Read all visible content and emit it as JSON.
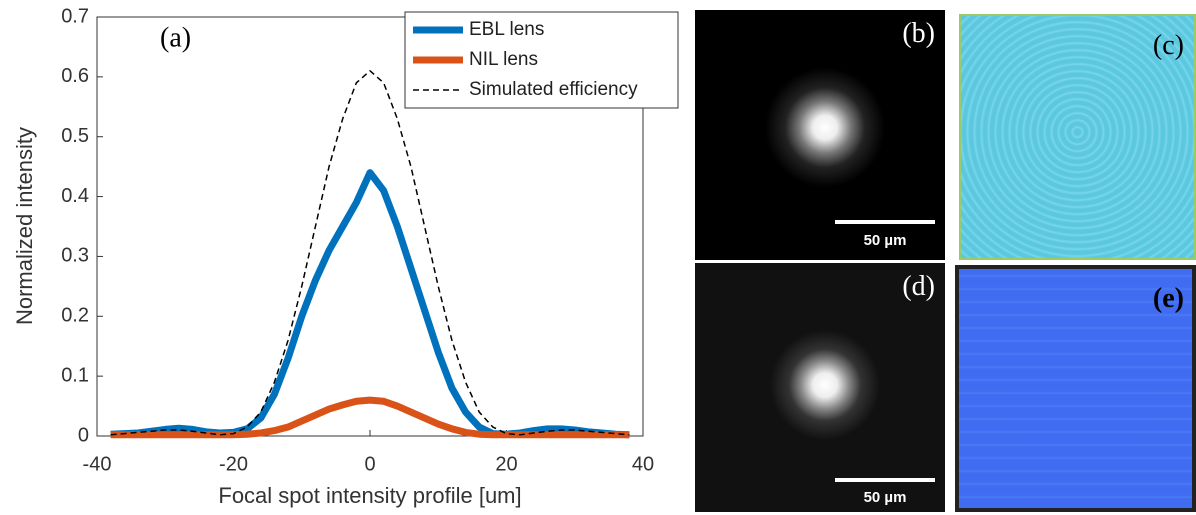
{
  "chart_data": {
    "type": "line",
    "panel_label": "(a)",
    "x_label": "Focal spot intensity profile [um]",
    "y_label": "Normalized intensity",
    "x": [
      -38,
      -36,
      -34,
      -32,
      -30,
      -28,
      -26,
      -24,
      -22,
      -20,
      -18,
      -16,
      -14,
      -12,
      -10,
      -8,
      -6,
      -4,
      -2,
      0,
      2,
      4,
      6,
      8,
      10,
      12,
      14,
      16,
      18,
      20,
      22,
      24,
      26,
      28,
      30,
      32,
      34,
      36,
      38
    ],
    "series": [
      {
        "name": "EBL lens",
        "color": "#0072bd",
        "linestyle": "solid",
        "width": 7,
        "values": [
          0.003,
          0.004,
          0.005,
          0.008,
          0.011,
          0.013,
          0.011,
          0.007,
          0.005,
          0.006,
          0.012,
          0.03,
          0.07,
          0.13,
          0.2,
          0.26,
          0.31,
          0.35,
          0.39,
          0.44,
          0.41,
          0.35,
          0.28,
          0.21,
          0.14,
          0.08,
          0.04,
          0.015,
          0.004,
          0.003,
          0.005,
          0.009,
          0.012,
          0.012,
          0.01,
          0.007,
          0.005,
          0.003,
          0.002
        ]
      },
      {
        "name": "NIL lens",
        "color": "#d95319",
        "linestyle": "solid",
        "width": 7,
        "values": [
          0.002,
          0.002,
          0.002,
          0.002,
          0.002,
          0.002,
          0.002,
          0.002,
          0.002,
          0.002,
          0.003,
          0.005,
          0.009,
          0.015,
          0.025,
          0.035,
          0.045,
          0.052,
          0.058,
          0.06,
          0.058,
          0.05,
          0.04,
          0.03,
          0.02,
          0.012,
          0.006,
          0.003,
          0.002,
          0.002,
          0.002,
          0.002,
          0.002,
          0.002,
          0.002,
          0.002,
          0.002,
          0.002,
          0.002
        ]
      },
      {
        "name": "Simulated efficiency",
        "color": "#000000",
        "linestyle": "dashed",
        "width": 1.5,
        "values": [
          0.002,
          0.004,
          0.006,
          0.008,
          0.01,
          0.01,
          0.008,
          0.005,
          0.002,
          0.004,
          0.015,
          0.04,
          0.09,
          0.16,
          0.25,
          0.35,
          0.45,
          0.53,
          0.59,
          0.61,
          0.59,
          0.53,
          0.45,
          0.35,
          0.25,
          0.16,
          0.09,
          0.04,
          0.015,
          0.004,
          0.002,
          0.005,
          0.008,
          0.01,
          0.01,
          0.008,
          0.006,
          0.004,
          0.002
        ]
      }
    ],
    "xlim": [
      -40,
      40
    ],
    "xticks": [
      -40,
      -20,
      0,
      20,
      40
    ],
    "ylim": [
      0,
      0.7
    ],
    "yticks": [
      0,
      0.1,
      0.2,
      0.3,
      0.4,
      0.5,
      0.6,
      0.7
    ],
    "grid": false,
    "legend": "top-right"
  },
  "panels": [
    {
      "label": "(b)",
      "scale_bar": "50 µm"
    },
    {
      "label": "(c)"
    },
    {
      "label": "(d)",
      "scale_bar": "50 µm"
    },
    {
      "label": "(e)"
    }
  ]
}
